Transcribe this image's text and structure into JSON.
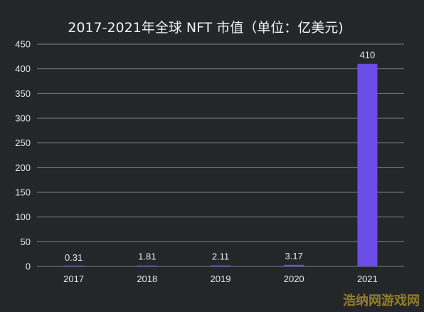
{
  "colors": {
    "background": "#24272a",
    "bar": "#6a4ee6",
    "grid": "#7d8084",
    "text": "#e6e6e6",
    "watermark": "#b89b2a"
  },
  "watermark": "浩纳网游戏网",
  "chart_data": {
    "type": "bar",
    "title": "2017-2021年全球 NFT 市值（单位：亿美元)",
    "xlabel": "",
    "ylabel": "",
    "categories": [
      "2017",
      "2018",
      "2019",
      "2020",
      "2021"
    ],
    "values": [
      0.31,
      1.81,
      2.11,
      3.17,
      410
    ],
    "data_labels": [
      "0.31",
      "1.81",
      "2.11",
      "3.17",
      "410"
    ],
    "ylim": [
      0,
      450
    ],
    "yticks": [
      0,
      50,
      100,
      150,
      200,
      250,
      300,
      350,
      400,
      450
    ],
    "grid": true,
    "legend": "none"
  }
}
